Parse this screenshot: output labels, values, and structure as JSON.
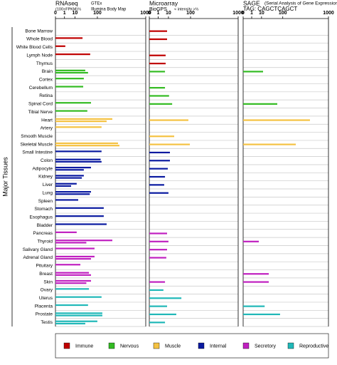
{
  "chart_data": {
    "type": "bar",
    "orientation": "horizontal",
    "ylabel": "Major Tissues",
    "groups": [
      {
        "name": "Immune",
        "color": "#c00000",
        "categories": [
          "Bone Marrow",
          "Whole Blood",
          "White Blood Cells",
          "Lymph Node",
          "Thymus"
        ]
      },
      {
        "name": "Nervous",
        "color": "#33bb22",
        "categories": [
          "Brain",
          "Cortex",
          "Cerebellum",
          "Retina",
          "Spinal Cord",
          "Tibial Nerve"
        ]
      },
      {
        "name": "Muscle",
        "color": "#f5c242",
        "categories": [
          "Heart",
          "Artery",
          "Smooth Muscle",
          "Skeletal Muscle"
        ]
      },
      {
        "name": "Internal",
        "color": "#0a1aa0",
        "categories": [
          "Small Intestine",
          "Colon",
          "Adipocyte",
          "Kidney",
          "Liver",
          "Lung",
          "Spleen",
          "Stomach",
          "Esophagus",
          "Bladder"
        ]
      },
      {
        "name": "Secretory",
        "color": "#c020c0",
        "categories": [
          "Pancreas",
          "Thyroid",
          "Salivary Gland",
          "Adrenal Gland",
          "Pituitary",
          "Breast",
          "Skin"
        ]
      },
      {
        "name": "Reproductive",
        "color": "#20b8b8",
        "categories": [
          "Ovary",
          "Uterus",
          "Placenta",
          "Prostate",
          "Testis"
        ]
      }
    ],
    "panels": [
      {
        "title": "RNAseq",
        "unit": "(100×FPKM)⅓",
        "xscale": "cube root",
        "xlim": [
          0,
          1000
        ],
        "xticks": [
          0,
          1,
          10,
          100,
          1000
        ],
        "series": [
          {
            "name": "GTEx",
            "color": "#0000cc",
            "values": [
              null,
              27,
              1.3,
              57,
              null,
              36,
              31,
              29,
              null,
              61,
              44,
              250,
              133,
              null,
              333,
              133,
              125,
              61,
              31,
              13,
              61,
              16,
              153,
              153,
              182,
              13,
              250,
              81,
              81,
              21,
              51,
              61,
              51,
              133,
              47,
              140,
              100
            ]
          },
          {
            "name": "Illumina Body Map",
            "color": "#000000",
            "values": [
              null,
              null,
              null,
              null,
              null,
              47,
              null,
              null,
              null,
              null,
              null,
              182,
              null,
              null,
              356,
              null,
              133,
              31,
              25,
              5.2,
              55,
              null,
              null,
              null,
              null,
              null,
              40,
              null,
              61,
              null,
              61,
              40,
              null,
              null,
              null,
              140,
              36
            ]
          }
        ]
      },
      {
        "title": "Microarray",
        "unit": "< intensity >⅓",
        "xscale": "cube root",
        "xlim": [
          0,
          1000
        ],
        "xticks": [
          0,
          1,
          10,
          100,
          1000
        ],
        "series": [
          {
            "name": "BioGPS",
            "color": "#0000cc",
            "values": [
              8,
              8,
              null,
              6.2,
              6.2,
              5.5,
              null,
              5.5,
              11,
              17,
              null,
              85,
              null,
              22,
              95,
              12.5,
              12.5,
              9,
              5.5,
              4.7,
              10,
              null,
              null,
              null,
              null,
              8,
              10,
              8,
              7,
              null,
              null,
              5.5,
              4,
              47,
              8,
              28,
              5.5
            ]
          }
        ]
      },
      {
        "title": "SAGE",
        "subtitle": "(Serial Analysis of Gene Expression)",
        "unit": "TAG: CAGCTCAGCT",
        "xscale": "cube root",
        "xlim": [
          0,
          1000
        ],
        "xticks": [
          0,
          1,
          10,
          100,
          1000
        ],
        "series": [
          {
            "values": [
              null,
              null,
              null,
              null,
              null,
              12.7,
              null,
              null,
              null,
              64,
              null,
              480,
              null,
              null,
              235,
              null,
              null,
              null,
              null,
              null,
              null,
              null,
              null,
              null,
              null,
              null,
              6.2,
              null,
              null,
              null,
              27,
              27,
              null,
              null,
              16,
              81,
              null
            ]
          }
        ]
      }
    ]
  }
}
